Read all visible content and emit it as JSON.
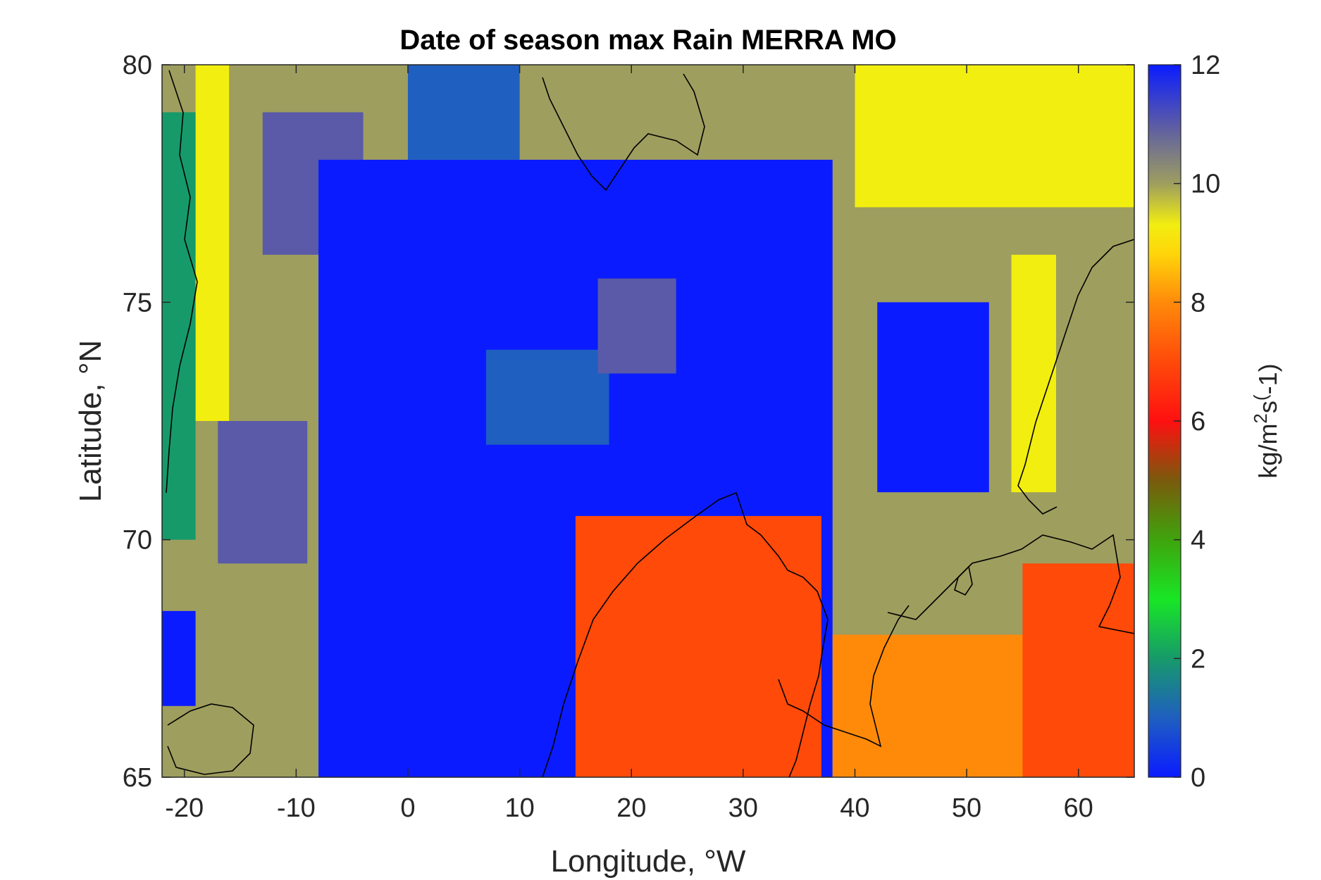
{
  "chart_data": {
    "type": "heatmap",
    "title": "Date of season max Rain MERRA MO",
    "xlabel": "Longitude, °W",
    "ylabel": "Latitude, °N",
    "xlim": [
      -22,
      65
    ],
    "ylim": [
      65,
      80
    ],
    "xticks": [
      -20,
      -10,
      0,
      10,
      20,
      30,
      40,
      50,
      60
    ],
    "xtick_labels": [
      "-20",
      "-10",
      "0",
      "10",
      "20",
      "30",
      "40",
      "50",
      "60"
    ],
    "yticks": [
      65,
      70,
      75,
      80
    ],
    "ytick_labels": [
      "65",
      "70",
      "75",
      "80"
    ],
    "colorbar": {
      "label": "kg/m²s(-1)",
      "label_parts": [
        "kg/m",
        "2",
        "s",
        "(",
        "-1)"
      ],
      "range": [
        0,
        12
      ],
      "ticks": [
        0,
        2,
        4,
        6,
        8,
        10,
        12
      ],
      "tick_labels": [
        "0",
        "2",
        "4",
        "6",
        "8",
        "10",
        "12"
      ],
      "colormap": [
        {
          "v": 0,
          "c": "#0a1cff"
        },
        {
          "v": 1,
          "c": "#1f5fc0"
        },
        {
          "v": 2,
          "c": "#179a6a"
        },
        {
          "v": 3,
          "c": "#18e625"
        },
        {
          "v": 4,
          "c": "#3fa40d"
        },
        {
          "v": 5,
          "c": "#7a5a0c"
        },
        {
          "v": 6,
          "c": "#ff1010"
        },
        {
          "v": 7,
          "c": "#ff4a0a"
        },
        {
          "v": 8,
          "c": "#ff8a0a"
        },
        {
          "v": 8.8,
          "c": "#ffd40a"
        },
        {
          "v": 9.3,
          "c": "#f2ee10"
        },
        {
          "v": 10,
          "c": "#9e9e5f"
        },
        {
          "v": 11,
          "c": "#5a5aa8"
        },
        {
          "v": 12,
          "c": "#0a1cff"
        }
      ]
    },
    "grid": false,
    "value_regions": [
      {
        "value": 10,
        "note": "background olive"
      },
      {
        "value": 9.2,
        "lon": [
          -19,
          -16
        ],
        "lat": [
          72.5,
          80
        ]
      },
      {
        "value": 9.2,
        "lon": [
          40,
          65
        ],
        "lat": [
          77,
          80
        ]
      },
      {
        "value": 11,
        "lon": [
          -13,
          -4
        ],
        "lat": [
          76,
          79
        ]
      },
      {
        "value": 11,
        "lon": [
          -17,
          -9
        ],
        "lat": [
          69.5,
          72.5
        ]
      },
      {
        "value": 12,
        "lon": [
          -8,
          38
        ],
        "lat": [
          65,
          78
        ]
      },
      {
        "value": 12,
        "lon": [
          42,
          52
        ],
        "lat": [
          71,
          75
        ]
      },
      {
        "value": 12,
        "lon": [
          -22,
          -19
        ],
        "lat": [
          66.5,
          68.5
        ]
      },
      {
        "value": 1,
        "lon": [
          0,
          10
        ],
        "lat": [
          78,
          80
        ]
      },
      {
        "value": 1,
        "lon": [
          7,
          18
        ],
        "lat": [
          72,
          74
        ]
      },
      {
        "value": 11,
        "lon": [
          17,
          24
        ],
        "lat": [
          73.5,
          75.5
        ]
      },
      {
        "value": 7.2,
        "lon": [
          15,
          37
        ],
        "lat": [
          65,
          70.5
        ]
      },
      {
        "value": 8.2,
        "lon": [
          38,
          65
        ],
        "lat": [
          65,
          68
        ]
      },
      {
        "value": 7.2,
        "lon": [
          55,
          65
        ],
        "lat": [
          65,
          69.5
        ]
      },
      {
        "value": 9.2,
        "lon": [
          54,
          58
        ],
        "lat": [
          71,
          76
        ]
      },
      {
        "value": 2,
        "lon": [
          -22,
          -19
        ],
        "lat": [
          70,
          79
        ]
      }
    ]
  }
}
